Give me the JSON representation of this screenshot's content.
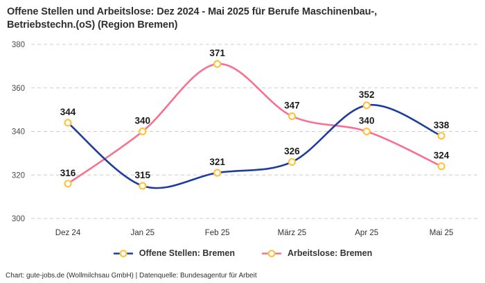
{
  "title": "Offene Stellen und Arbeitslose: Dez 2024 - Mai 2025 für Berufe Maschinenbau-,\nBetriebstechn.(oS) (Region Bremen)",
  "footer": "Chart: gute-jobs.de (Wollmilchsau GmbH) | Datenquelle: Bundesagentur für Arbeit",
  "chart_data": {
    "type": "line",
    "curve": "spline",
    "title": "Offene Stellen und Arbeitslose: Dez 2024 - Mai 2025 für Berufe Maschinenbau-, Betriebstechn.(oS) (Region Bremen)",
    "categories": [
      "Dez 24",
      "Jan 25",
      "Feb 25",
      "März 25",
      "Apr 25",
      "Mai 25"
    ],
    "series": [
      {
        "name": "Offene Stellen: Bremen",
        "color": "#1e3c9b",
        "values": [
          344,
          315,
          321,
          326,
          352,
          338
        ]
      },
      {
        "name": "Arbeitslose: Bremen",
        "color": "#f8708f",
        "values": [
          316,
          340,
          371,
          347,
          340,
          324
        ]
      }
    ],
    "marker_color": "#ffc43d",
    "marker_fill": "#ffffff",
    "grid_color": "#cccccc",
    "xlabel": "",
    "ylabel": "",
    "ylim": [
      300,
      380
    ],
    "yticks": [
      300,
      320,
      340,
      360,
      380
    ],
    "grid": true,
    "grid_style": "dashed",
    "data_labels": true,
    "legend_position": "bottom"
  }
}
